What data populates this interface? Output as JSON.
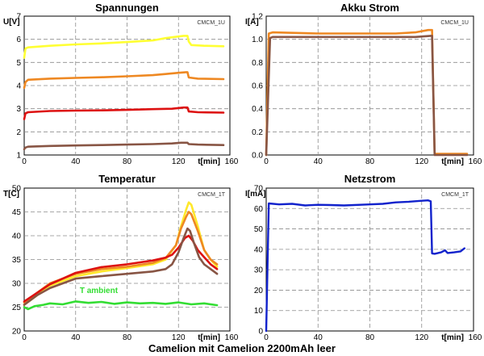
{
  "figure": {
    "caption": "Camelion mit Camelion 2200mAh leer"
  },
  "chart_data": [
    {
      "id": "spannungen",
      "type": "line",
      "title": "Spannungen",
      "xlabel": "t[min]",
      "ylabel": "U[V]",
      "tag": "CMCM_1U",
      "xlim": [
        0,
        160
      ],
      "ylim": [
        1,
        7
      ],
      "xticks": [
        0,
        40,
        80,
        120,
        160
      ],
      "yticks": [
        1,
        2,
        3,
        4,
        5,
        6,
        7
      ],
      "grid": true,
      "series": [
        {
          "color": "#ffff33",
          "points": [
            [
              0,
              5.2
            ],
            [
              1,
              5.6
            ],
            [
              3,
              5.65
            ],
            [
              20,
              5.72
            ],
            [
              40,
              5.78
            ],
            [
              60,
              5.82
            ],
            [
              80,
              5.88
            ],
            [
              100,
              5.95
            ],
            [
              110,
              6.05
            ],
            [
              120,
              6.12
            ],
            [
              124,
              6.15
            ],
            [
              127,
              6.15
            ],
            [
              128,
              5.9
            ],
            [
              130,
              5.75
            ],
            [
              140,
              5.72
            ],
            [
              155,
              5.7
            ]
          ]
        },
        {
          "color": "#ee8822",
          "points": [
            [
              0,
              3.9
            ],
            [
              1,
              4.15
            ],
            [
              3,
              4.25
            ],
            [
              20,
              4.3
            ],
            [
              40,
              4.33
            ],
            [
              60,
              4.36
            ],
            [
              80,
              4.4
            ],
            [
              100,
              4.45
            ],
            [
              110,
              4.5
            ],
            [
              120,
              4.55
            ],
            [
              126,
              4.58
            ],
            [
              127,
              4.58
            ],
            [
              128,
              4.35
            ],
            [
              135,
              4.3
            ],
            [
              155,
              4.28
            ]
          ]
        },
        {
          "color": "#dd1111",
          "points": [
            [
              0,
              2.55
            ],
            [
              1,
              2.8
            ],
            [
              3,
              2.85
            ],
            [
              20,
              2.9
            ],
            [
              40,
              2.92
            ],
            [
              60,
              2.93
            ],
            [
              80,
              2.95
            ],
            [
              100,
              2.98
            ],
            [
              115,
              3.0
            ],
            [
              124,
              3.05
            ],
            [
              127,
              3.05
            ],
            [
              128,
              2.88
            ],
            [
              135,
              2.85
            ],
            [
              155,
              2.83
            ]
          ]
        },
        {
          "color": "#885544",
          "points": [
            [
              0,
              1.25
            ],
            [
              1,
              1.32
            ],
            [
              3,
              1.36
            ],
            [
              20,
              1.39
            ],
            [
              40,
              1.41
            ],
            [
              60,
              1.43
            ],
            [
              80,
              1.45
            ],
            [
              100,
              1.47
            ],
            [
              115,
              1.5
            ],
            [
              122,
              1.53
            ],
            [
              127,
              1.53
            ],
            [
              128,
              1.47
            ],
            [
              135,
              1.45
            ],
            [
              155,
              1.43
            ]
          ]
        }
      ]
    },
    {
      "id": "akku-strom",
      "type": "line",
      "title": "Akku Strom",
      "xlabel": "t[min]",
      "ylabel": "I[A]",
      "tag": "CMCM_1U",
      "xlim": [
        0,
        160
      ],
      "ylim": [
        0,
        1.2
      ],
      "xticks": [
        0,
        40,
        80,
        120,
        160
      ],
      "yticks": [
        0,
        0.2,
        0.4,
        0.6,
        0.8,
        1.0,
        1.2
      ],
      "ytick_labels": [
        "0.0",
        "0.2",
        "0.4",
        "0.6",
        "0.8",
        "1.0",
        "1.2"
      ],
      "grid": true,
      "series": [
        {
          "color": "#ee8822",
          "points": [
            [
              0,
              0
            ],
            [
              2,
              1.05
            ],
            [
              5,
              1.06
            ],
            [
              40,
              1.05
            ],
            [
              80,
              1.05
            ],
            [
              100,
              1.05
            ],
            [
              115,
              1.06
            ],
            [
              125,
              1.08
            ],
            [
              128,
              1.08
            ],
            [
              130,
              0.01
            ],
            [
              155,
              0.01
            ]
          ]
        },
        {
          "color": "#885544",
          "points": [
            [
              0,
              0
            ],
            [
              3,
              1.01
            ],
            [
              5,
              1.02
            ],
            [
              40,
              1.02
            ],
            [
              80,
              1.02
            ],
            [
              100,
              1.02
            ],
            [
              115,
              1.02
            ],
            [
              127,
              1.03
            ],
            [
              128,
              1.03
            ],
            [
              130,
              0.0
            ],
            [
              155,
              0.0
            ]
          ]
        }
      ]
    },
    {
      "id": "temperatur",
      "type": "line",
      "title": "Temperatur",
      "xlabel": "t[min]",
      "ylabel": "T[C]",
      "tag": "CMCM_1T",
      "xlim": [
        0,
        160
      ],
      "ylim": [
        20,
        50
      ],
      "xticks": [
        0,
        40,
        80,
        120,
        160
      ],
      "yticks": [
        20,
        25,
        30,
        35,
        40,
        45,
        50
      ],
      "grid": true,
      "annotation": {
        "text": "T ambient",
        "x": 58,
        "y": 28.0,
        "color": "#33dd33"
      },
      "series": [
        {
          "color": "#ffe82a",
          "points": [
            [
              0,
              25.5
            ],
            [
              10,
              27.5
            ],
            [
              20,
              29.5
            ],
            [
              40,
              31.5
            ],
            [
              60,
              32.5
            ],
            [
              80,
              33.2
            ],
            [
              100,
              34
            ],
            [
              110,
              35
            ],
            [
              118,
              38
            ],
            [
              122,
              42
            ],
            [
              126,
              45.5
            ],
            [
              128,
              47
            ],
            [
              130,
              46.5
            ],
            [
              135,
              42
            ],
            [
              140,
              37
            ],
            [
              145,
              35
            ],
            [
              150,
              33.5
            ]
          ]
        },
        {
          "color": "#ee8822",
          "points": [
            [
              0,
              26
            ],
            [
              10,
              28
            ],
            [
              20,
              30
            ],
            [
              40,
              32
            ],
            [
              60,
              33
            ],
            [
              80,
              33.5
            ],
            [
              100,
              34.3
            ],
            [
              110,
              35.3
            ],
            [
              118,
              38
            ],
            [
              122,
              41.5
            ],
            [
              126,
              44
            ],
            [
              128,
              45
            ],
            [
              130,
              44.5
            ],
            [
              135,
              41
            ],
            [
              140,
              37
            ],
            [
              145,
              35
            ],
            [
              150,
              34
            ]
          ]
        },
        {
          "color": "#dd1111",
          "points": [
            [
              0,
              26.2
            ],
            [
              10,
              28
            ],
            [
              20,
              29.8
            ],
            [
              40,
              32.2
            ],
            [
              60,
              33.4
            ],
            [
              80,
              34
            ],
            [
              100,
              34.8
            ],
            [
              110,
              35.4
            ],
            [
              115,
              36
            ],
            [
              120,
              37.5
            ],
            [
              125,
              39.5
            ],
            [
              128,
              40
            ],
            [
              131,
              39
            ],
            [
              135,
              37
            ],
            [
              140,
              35.5
            ],
            [
              145,
              34
            ],
            [
              150,
              33
            ]
          ]
        },
        {
          "color": "#885544",
          "points": [
            [
              0,
              25.5
            ],
            [
              10,
              27.5
            ],
            [
              20,
              29
            ],
            [
              40,
              31
            ],
            [
              60,
              31.5
            ],
            [
              80,
              32
            ],
            [
              100,
              32.5
            ],
            [
              110,
              33
            ],
            [
              115,
              34
            ],
            [
              120,
              36.5
            ],
            [
              124,
              39.5
            ],
            [
              127,
              41.5
            ],
            [
              129,
              41
            ],
            [
              132,
              38.5
            ],
            [
              136,
              35.5
            ],
            [
              140,
              34
            ],
            [
              145,
              33
            ],
            [
              150,
              32
            ]
          ]
        },
        {
          "color": "#33dd33",
          "points": [
            [
              0,
              25
            ],
            [
              3,
              24.6
            ],
            [
              8,
              25.2
            ],
            [
              15,
              25.5
            ],
            [
              20,
              25.8
            ],
            [
              30,
              25.6
            ],
            [
              40,
              26.2
            ],
            [
              50,
              25.9
            ],
            [
              60,
              26.1
            ],
            [
              70,
              25.7
            ],
            [
              80,
              26
            ],
            [
              90,
              25.8
            ],
            [
              100,
              25.9
            ],
            [
              110,
              25.7
            ],
            [
              120,
              26
            ],
            [
              130,
              25.6
            ],
            [
              140,
              25.8
            ],
            [
              150,
              25.4
            ]
          ]
        }
      ]
    },
    {
      "id": "netzstrom",
      "type": "line",
      "title": "Netzstrom",
      "xlabel": "t[min]",
      "ylabel": "I[mA]",
      "tag": "CMCM_1T",
      "xlim": [
        0,
        160
      ],
      "ylim": [
        0,
        70
      ],
      "xticks": [
        0,
        40,
        80,
        120,
        160
      ],
      "yticks": [
        0,
        10,
        20,
        30,
        40,
        50,
        60,
        70
      ],
      "grid": true,
      "series": [
        {
          "color": "#1122cc",
          "points": [
            [
              0,
              0
            ],
            [
              2,
              62.5
            ],
            [
              10,
              62
            ],
            [
              20,
              62.3
            ],
            [
              30,
              61.5
            ],
            [
              40,
              61.8
            ],
            [
              50,
              61.7
            ],
            [
              60,
              61.5
            ],
            [
              80,
              62
            ],
            [
              90,
              62.3
            ],
            [
              100,
              63
            ],
            [
              110,
              63.3
            ],
            [
              120,
              63.8
            ],
            [
              125,
              64
            ],
            [
              127,
              63.5
            ],
            [
              128,
              38
            ],
            [
              130,
              37.8
            ],
            [
              135,
              38.5
            ],
            [
              138,
              39.5
            ],
            [
              140,
              38.2
            ],
            [
              145,
              38.5
            ],
            [
              150,
              39
            ],
            [
              153,
              40.5
            ]
          ]
        }
      ]
    }
  ]
}
